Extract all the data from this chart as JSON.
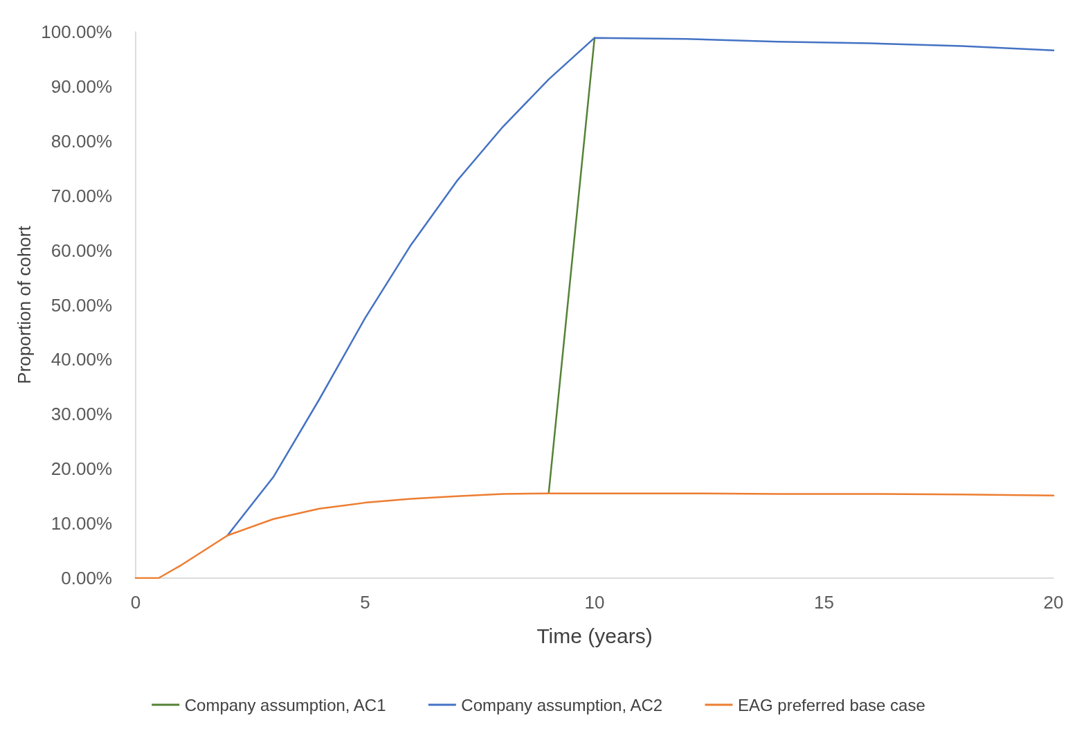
{
  "chart_data": {
    "type": "line",
    "xlabel": "Time (years)",
    "ylabel": "Proportion of cohort",
    "x": [
      0,
      0.5,
      1,
      2,
      3,
      4,
      5,
      6,
      7,
      8,
      9,
      10,
      12,
      14,
      16,
      18,
      20
    ],
    "series": [
      {
        "name": "Company assumption, AC1",
        "color": "#548235",
        "values": [
          null,
          null,
          null,
          null,
          null,
          null,
          null,
          null,
          null,
          null,
          15.5,
          98.9,
          null,
          null,
          null,
          null,
          null
        ]
      },
      {
        "name": "Company assumption, AC2",
        "color": "#4472c4",
        "values": [
          null,
          null,
          null,
          7.8,
          18.5,
          32.7,
          47.6,
          61.0,
          72.7,
          82.6,
          91.3,
          98.9,
          98.7,
          98.2,
          97.9,
          97.4,
          96.6
        ]
      },
      {
        "name": "EAG preferred base case",
        "color": "#ed7d31",
        "values": [
          0,
          0,
          2.4,
          7.8,
          10.8,
          12.7,
          13.8,
          14.5,
          15.0,
          15.4,
          15.5,
          15.5,
          15.5,
          15.4,
          15.4,
          15.3,
          15.1
        ]
      }
    ],
    "xlim": [
      0,
      20
    ],
    "xticks": [
      0,
      5,
      10,
      15,
      20
    ],
    "ylim": [
      0,
      100
    ],
    "yticks": [
      {
        "value": 0,
        "label": "0.00%"
      },
      {
        "value": 10,
        "label": "10.00%"
      },
      {
        "value": 20,
        "label": "20.00%"
      },
      {
        "value": 30,
        "label": "30.00%"
      },
      {
        "value": 40,
        "label": "40.00%"
      },
      {
        "value": 50,
        "label": "50.00%"
      },
      {
        "value": 60,
        "label": "60.00%"
      },
      {
        "value": 70,
        "label": "70.00%"
      },
      {
        "value": 80,
        "label": "80.00%"
      },
      {
        "value": 90,
        "label": "90.00%"
      },
      {
        "value": 100,
        "label": "100.00%"
      }
    ],
    "grid": false,
    "legend": "bottom",
    "marker": "none",
    "line_style": "solid"
  }
}
